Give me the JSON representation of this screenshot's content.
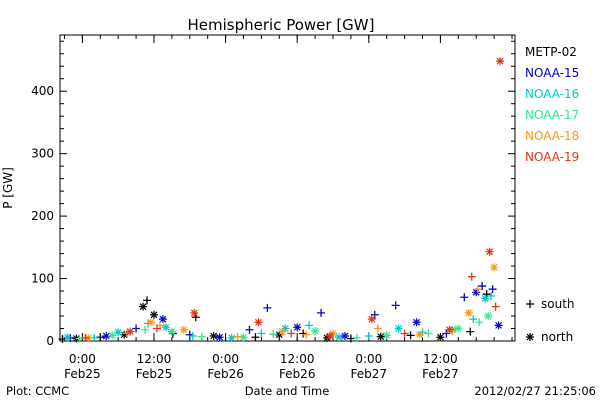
{
  "chart_data": {
    "type": "scatter",
    "title": "Hemispheric Power [GW]",
    "xlabel": "Date and Time",
    "ylabel": "P [GW]",
    "ylim": [
      0,
      490
    ],
    "xlim": [
      "2012-02-24T20:15",
      "2012-02-28T00:30"
    ],
    "yticks": [
      0,
      100,
      200,
      300,
      400
    ],
    "xticks": [
      {
        "time": "2012-02-25T00:00",
        "line1": "0:00",
        "line2": "Feb25"
      },
      {
        "time": "2012-02-25T12:00",
        "line1": "12:00",
        "line2": "Feb25"
      },
      {
        "time": "2012-02-26T00:00",
        "line1": "0:00",
        "line2": "Feb26"
      },
      {
        "time": "2012-02-26T12:00",
        "line1": "12:00",
        "line2": "Feb26"
      },
      {
        "time": "2012-02-27T00:00",
        "line1": "0:00",
        "line2": "Feb27"
      },
      {
        "time": "2012-02-27T12:00",
        "line1": "12:00",
        "line2": "Feb27"
      }
    ],
    "legend_placement": "right",
    "marker_legend": [
      {
        "symbol": "+",
        "label": "south"
      },
      {
        "symbol": "*",
        "label": "north"
      }
    ],
    "series": [
      {
        "name": "METP-02",
        "color": "#000000",
        "points": [
          [
            "2012-02-24T20:40",
            3,
            "+"
          ],
          [
            "2012-02-24T23:00",
            4,
            "*"
          ],
          [
            "2012-02-25T03:00",
            6,
            "+"
          ],
          [
            "2012-02-25T07:00",
            10,
            "*"
          ],
          [
            "2012-02-25T10:10",
            55,
            "*"
          ],
          [
            "2012-02-25T10:50",
            65,
            "+"
          ],
          [
            "2012-02-25T12:00",
            42,
            "*"
          ],
          [
            "2012-02-25T15:10",
            12,
            "+"
          ],
          [
            "2012-02-25T19:00",
            38,
            "+"
          ],
          [
            "2012-02-25T22:00",
            8,
            "*"
          ],
          [
            "2012-02-26T05:00",
            6,
            "+"
          ],
          [
            "2012-02-26T09:00",
            10,
            "*"
          ],
          [
            "2012-02-26T13:00",
            12,
            "+"
          ],
          [
            "2012-02-26T17:00",
            5,
            "*"
          ],
          [
            "2012-02-26T21:00",
            4,
            "+"
          ],
          [
            "2012-02-27T02:00",
            7,
            "*"
          ],
          [
            "2012-02-27T07:00",
            9,
            "+"
          ],
          [
            "2012-02-27T12:00",
            6,
            "*"
          ],
          [
            "2012-02-27T17:00",
            15,
            "+"
          ],
          [
            "2012-02-27T19:45",
            75,
            "+"
          ]
        ]
      },
      {
        "name": "NOAA-15",
        "color": "#0000c8",
        "points": [
          [
            "2012-02-24T22:00",
            5,
            "+"
          ],
          [
            "2012-02-25T04:00",
            8,
            "*"
          ],
          [
            "2012-02-25T09:00",
            20,
            "+"
          ],
          [
            "2012-02-25T13:30",
            35,
            "*"
          ],
          [
            "2012-02-25T18:00",
            10,
            "+"
          ],
          [
            "2012-02-25T23:00",
            6,
            "*"
          ],
          [
            "2012-02-26T04:00",
            18,
            "+"
          ],
          [
            "2012-02-26T07:00",
            53,
            "+"
          ],
          [
            "2012-02-26T12:00",
            22,
            "*"
          ],
          [
            "2012-02-26T16:00",
            45,
            "+"
          ],
          [
            "2012-02-26T20:00",
            8,
            "*"
          ],
          [
            "2012-02-27T01:00",
            42,
            "+"
          ],
          [
            "2012-02-27T04:30",
            57,
            "+"
          ],
          [
            "2012-02-27T08:00",
            30,
            "*"
          ],
          [
            "2012-02-27T13:00",
            12,
            "+"
          ],
          [
            "2012-02-27T16:00",
            70,
            "+"
          ],
          [
            "2012-02-27T18:00",
            78,
            "*"
          ],
          [
            "2012-02-27T19:00",
            88,
            "+"
          ],
          [
            "2012-02-27T20:45",
            83,
            "+"
          ],
          [
            "2012-02-27T21:45",
            25,
            "*"
          ]
        ]
      },
      {
        "name": "NOAA-16",
        "color": "#00c8c8",
        "points": [
          [
            "2012-02-24T21:30",
            6,
            "*"
          ],
          [
            "2012-02-25T02:00",
            5,
            "+"
          ],
          [
            "2012-02-25T06:00",
            14,
            "*"
          ],
          [
            "2012-02-25T11:00",
            28,
            "+"
          ],
          [
            "2012-02-25T14:00",
            22,
            "*"
          ],
          [
            "2012-02-25T18:30",
            8,
            "+"
          ],
          [
            "2012-02-26T01:00",
            5,
            "*"
          ],
          [
            "2012-02-26T06:00",
            12,
            "+"
          ],
          [
            "2012-02-26T10:00",
            20,
            "*"
          ],
          [
            "2012-02-26T14:00",
            25,
            "+"
          ],
          [
            "2012-02-26T19:00",
            6,
            "*"
          ],
          [
            "2012-02-27T00:00",
            8,
            "+"
          ],
          [
            "2012-02-27T05:00",
            20,
            "*"
          ],
          [
            "2012-02-27T09:00",
            14,
            "+"
          ],
          [
            "2012-02-27T14:00",
            18,
            "*"
          ],
          [
            "2012-02-27T17:30",
            35,
            "+"
          ],
          [
            "2012-02-27T19:30",
            68,
            "*"
          ],
          [
            "2012-02-27T20:30",
            72,
            "+"
          ]
        ]
      },
      {
        "name": "NOAA-17",
        "color": "#32e68c",
        "points": [
          [
            "2012-02-24T23:30",
            4,
            "+"
          ],
          [
            "2012-02-25T05:00",
            9,
            "*"
          ],
          [
            "2012-02-25T10:30",
            18,
            "+"
          ],
          [
            "2012-02-25T15:00",
            15,
            "*"
          ],
          [
            "2012-02-25T20:00",
            7,
            "+"
          ],
          [
            "2012-02-26T03:00",
            6,
            "*"
          ],
          [
            "2012-02-26T08:00",
            11,
            "+"
          ],
          [
            "2012-02-26T15:00",
            16,
            "*"
          ],
          [
            "2012-02-26T22:00",
            5,
            "+"
          ],
          [
            "2012-02-27T03:00",
            9,
            "*"
          ],
          [
            "2012-02-27T10:00",
            12,
            "+"
          ],
          [
            "2012-02-27T15:00",
            20,
            "*"
          ],
          [
            "2012-02-27T18:30",
            30,
            "+"
          ],
          [
            "2012-02-27T20:00",
            40,
            "*"
          ]
        ]
      },
      {
        "name": "NOAA-18",
        "color": "#ff9614",
        "points": [
          [
            "2012-02-25T01:00",
            5,
            "*"
          ],
          [
            "2012-02-25T07:30",
            12,
            "+"
          ],
          [
            "2012-02-25T11:30",
            30,
            "*"
          ],
          [
            "2012-02-25T13:00",
            25,
            "+"
          ],
          [
            "2012-02-25T17:00",
            18,
            "*"
          ],
          [
            "2012-02-26T02:00",
            7,
            "+"
          ],
          [
            "2012-02-26T09:30",
            15,
            "*"
          ],
          [
            "2012-02-26T13:30",
            10,
            "+"
          ],
          [
            "2012-02-26T18:00",
            12,
            "*"
          ],
          [
            "2012-02-27T01:30",
            20,
            "+"
          ],
          [
            "2012-02-27T08:30",
            10,
            "*"
          ],
          [
            "2012-02-27T14:00",
            16,
            "+"
          ],
          [
            "2012-02-27T16:45",
            45,
            "*"
          ],
          [
            "2012-02-27T18:15",
            83,
            "+"
          ],
          [
            "2012-02-27T21:00",
            118,
            "*"
          ]
        ]
      },
      {
        "name": "NOAA-19",
        "color": "#e63214",
        "points": [
          [
            "2012-02-25T00:30",
            5,
            "+"
          ],
          [
            "2012-02-25T08:00",
            15,
            "*"
          ],
          [
            "2012-02-25T12:30",
            20,
            "+"
          ],
          [
            "2012-02-25T18:45",
            45,
            "*"
          ],
          [
            "2012-02-26T05:30",
            30,
            "*"
          ],
          [
            "2012-02-26T11:00",
            12,
            "+"
          ],
          [
            "2012-02-26T17:30",
            8,
            "*"
          ],
          [
            "2012-02-27T00:30",
            35,
            "*"
          ],
          [
            "2012-02-27T06:00",
            12,
            "+"
          ],
          [
            "2012-02-27T13:30",
            18,
            "*"
          ],
          [
            "2012-02-27T17:15",
            103,
            "+"
          ],
          [
            "2012-02-27T20:15",
            143,
            "*"
          ],
          [
            "2012-02-27T21:15",
            55,
            "+"
          ],
          [
            "2012-02-27T22:00",
            448,
            "*"
          ]
        ]
      }
    ]
  },
  "footer": {
    "left": "Plot: CCMC",
    "center": "Date and Time",
    "right": "2012/02/27 21:25:06"
  }
}
